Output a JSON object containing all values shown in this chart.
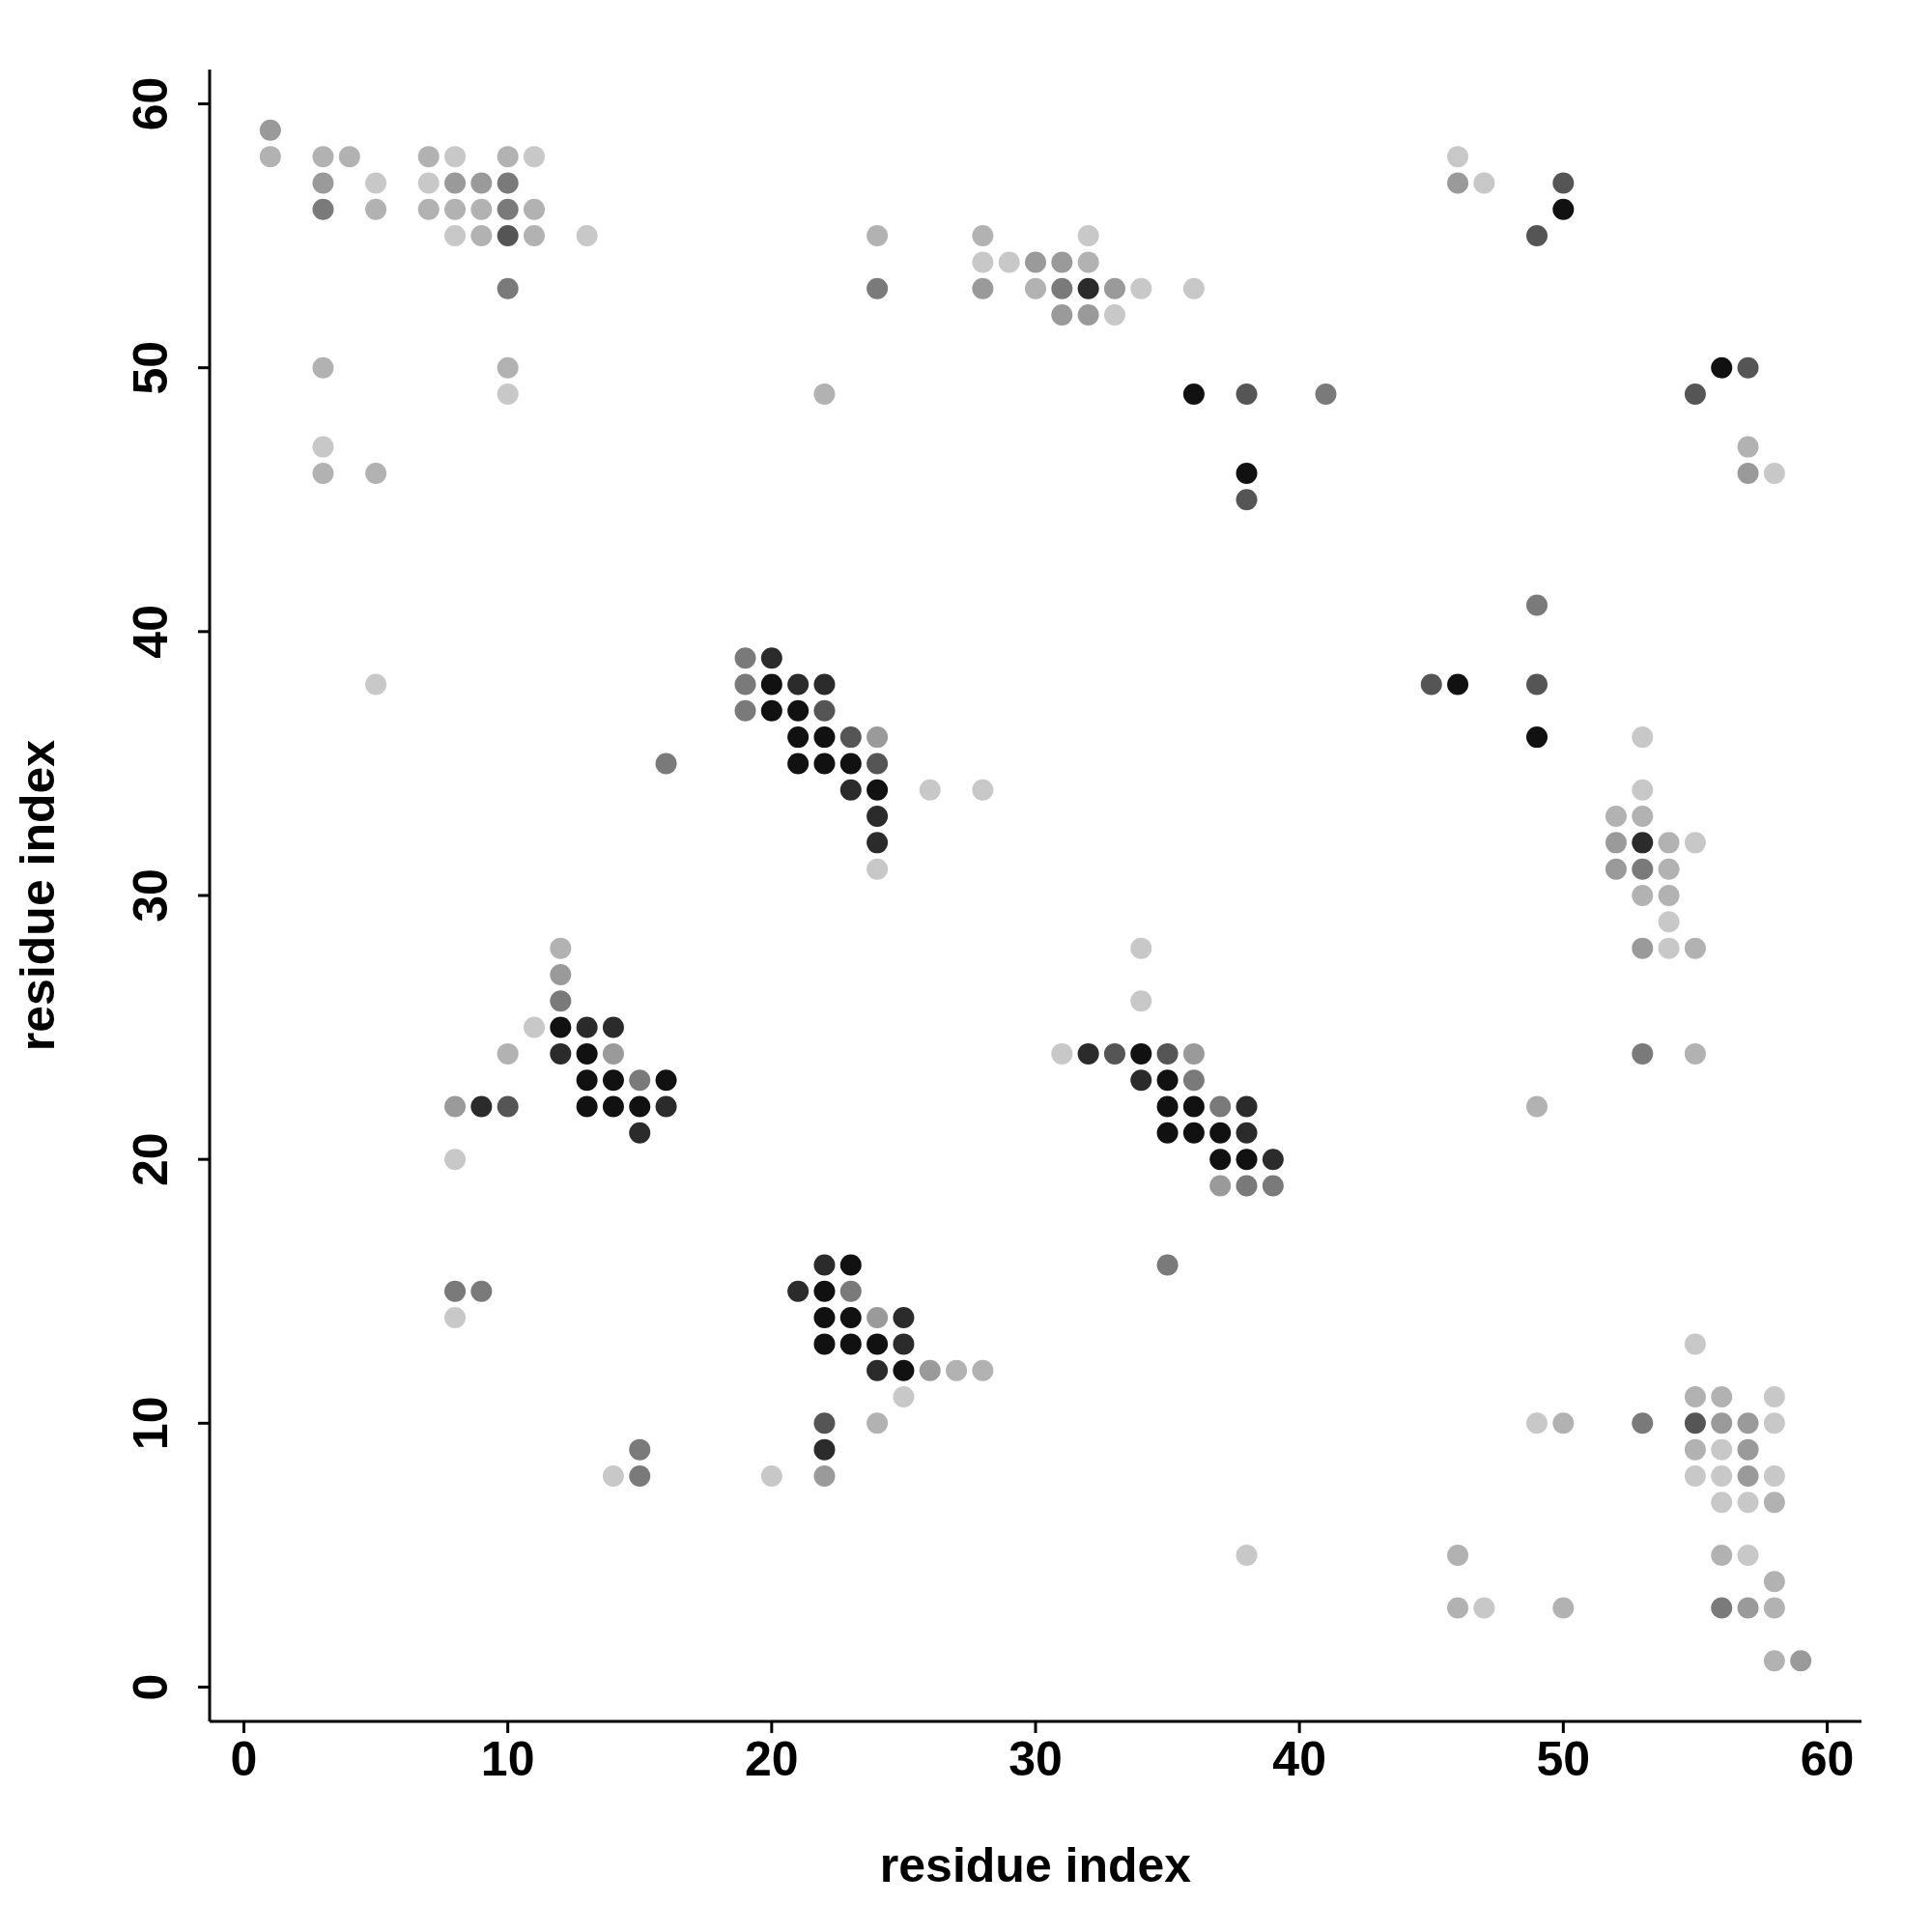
{
  "chart_data": {
    "type": "scatter",
    "xlabel": "residue index",
    "ylabel": "residue index",
    "xlim": [
      -1.3,
      61.3
    ],
    "ylim": [
      -1.3,
      61.3
    ],
    "xticks": [
      0,
      10,
      20,
      30,
      40,
      50,
      60
    ],
    "yticks": [
      0,
      10,
      20,
      30,
      40,
      50,
      60
    ],
    "marker": "circle",
    "series": [
      {
        "color": "#111111",
        "x": [
          50,
          56,
          36,
          38,
          20,
          46,
          20,
          21,
          21,
          22,
          49,
          21,
          22,
          23,
          24,
          12,
          13,
          34,
          13,
          14,
          16,
          35,
          13,
          14,
          15,
          35,
          36,
          35,
          36,
          37,
          37,
          38,
          23,
          22,
          22,
          23,
          22,
          23,
          24,
          25
        ],
        "values": [
          56,
          50,
          49,
          46,
          38,
          38,
          37,
          37,
          36,
          36,
          36,
          35,
          35,
          35,
          34,
          25,
          24,
          24,
          23,
          23,
          23,
          23,
          22,
          22,
          22,
          22,
          22,
          21,
          21,
          21,
          20,
          20,
          16,
          15,
          14,
          14,
          13,
          13,
          13,
          12
        ]
      },
      {
        "color": "#2b2b2b",
        "x": [
          32,
          20,
          21,
          22,
          23,
          24,
          24,
          53,
          13,
          14,
          12,
          32,
          34,
          9,
          16,
          38,
          15,
          38,
          39,
          22,
          21,
          25,
          25,
          24,
          22
        ],
        "values": [
          53,
          39,
          38,
          38,
          34,
          33,
          32,
          32,
          25,
          25,
          24,
          24,
          23,
          22,
          22,
          22,
          21,
          21,
          20,
          16,
          15,
          14,
          13,
          12,
          9
        ]
      },
      {
        "color": "#555555",
        "x": [
          50,
          10,
          49,
          57,
          38,
          55,
          38,
          45,
          49,
          22,
          23,
          24,
          33,
          35,
          10,
          22,
          55
        ],
        "values": [
          57,
          55,
          55,
          50,
          49,
          49,
          45,
          38,
          38,
          37,
          36,
          35,
          24,
          24,
          22,
          10,
          10
        ]
      },
      {
        "color": "#7a7a7a",
        "x": [
          10,
          3,
          10,
          10,
          24,
          31,
          41,
          49,
          19,
          19,
          19,
          16,
          53,
          12,
          53,
          15,
          36,
          37,
          38,
          39,
          35,
          8,
          9,
          23,
          53,
          15,
          15,
          56
        ],
        "values": [
          57,
          56,
          56,
          53,
          53,
          53,
          49,
          41,
          39,
          38,
          37,
          35,
          31,
          26,
          24,
          23,
          23,
          22,
          19,
          19,
          16,
          15,
          15,
          15,
          10,
          9,
          8,
          3
        ]
      },
      {
        "color": "#9a9a9a",
        "x": [
          1,
          3,
          8,
          9,
          46,
          30,
          31,
          28,
          33,
          31,
          32,
          57,
          24,
          52,
          52,
          53,
          12,
          14,
          36,
          8,
          37,
          24,
          26,
          56,
          57,
          57,
          22,
          57,
          57,
          59
        ],
        "values": [
          59,
          57,
          57,
          57,
          57,
          54,
          54,
          53,
          53,
          52,
          52,
          46,
          36,
          32,
          31,
          28,
          27,
          24,
          24,
          22,
          19,
          14,
          12,
          10,
          10,
          9,
          8,
          8,
          3,
          1
        ]
      },
      {
        "color": "#b2b2b2",
        "x": [
          1,
          3,
          4,
          7,
          10,
          5,
          7,
          8,
          9,
          11,
          9,
          11,
          24,
          28,
          32,
          30,
          3,
          10,
          22,
          57,
          3,
          5,
          52,
          53,
          54,
          54,
          53,
          54,
          12,
          55,
          10,
          55,
          49,
          27,
          28,
          55,
          56,
          24,
          50,
          55,
          58,
          46,
          56,
          58,
          46,
          50,
          58,
          58
        ],
        "values": [
          58,
          58,
          58,
          58,
          58,
          56,
          56,
          56,
          56,
          56,
          55,
          55,
          55,
          55,
          54,
          53,
          50,
          50,
          49,
          47,
          46,
          46,
          33,
          33,
          32,
          31,
          30,
          30,
          28,
          28,
          24,
          24,
          22,
          12,
          12,
          11,
          11,
          10,
          10,
          9,
          7,
          5,
          5,
          4,
          3,
          3,
          3,
          1
        ]
      },
      {
        "color": "#c8c8c8",
        "x": [
          8,
          11,
          46,
          5,
          7,
          47,
          8,
          13,
          32,
          28,
          29,
          34,
          36,
          33,
          10,
          3,
          58,
          5,
          53,
          26,
          28,
          53,
          55,
          24,
          54,
          34,
          54,
          34,
          11,
          31,
          8,
          8,
          55,
          25,
          58,
          49,
          58,
          56,
          14,
          20,
          55,
          56,
          58,
          56,
          57,
          38,
          57,
          47
        ],
        "values": [
          58,
          58,
          58,
          57,
          57,
          57,
          55,
          55,
          55,
          54,
          54,
          53,
          53,
          52,
          49,
          47,
          46,
          38,
          36,
          34,
          34,
          34,
          32,
          31,
          29,
          28,
          28,
          26,
          25,
          24,
          20,
          14,
          13,
          11,
          11,
          10,
          10,
          9,
          8,
          8,
          8,
          8,
          8,
          7,
          7,
          5,
          5,
          3
        ]
      }
    ]
  }
}
